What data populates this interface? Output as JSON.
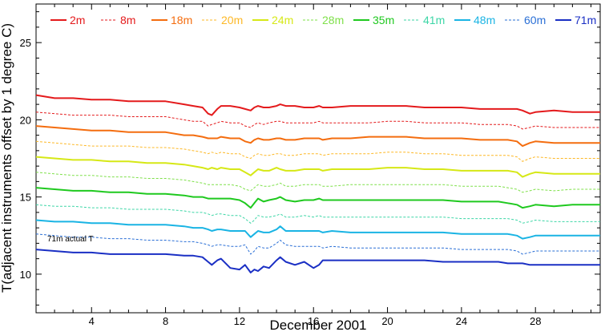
{
  "chart_data": {
    "type": "line",
    "title": "",
    "xlabel": "December 2001",
    "ylabel": "T(adjacent instruments offset by 1 degree C)",
    "xlim": [
      1,
      31.5
    ],
    "ylim": [
      7.5,
      27.5
    ],
    "xticks": [
      4,
      8,
      12,
      16,
      20,
      24,
      28
    ],
    "yticks": [
      10,
      15,
      20,
      25
    ],
    "grid": false,
    "legend_position": "top",
    "annotation": "71m actual T",
    "x": [
      1.0,
      2.0,
      3.0,
      4.0,
      5.0,
      6.0,
      7.0,
      8.0,
      9.0,
      9.5,
      10.0,
      10.3,
      10.5,
      10.8,
      11.0,
      11.5,
      12.0,
      12.3,
      12.6,
      12.8,
      13.0,
      13.3,
      13.6,
      14.0,
      14.2,
      14.5,
      15.0,
      15.5,
      16.0,
      16.3,
      16.5,
      17.0,
      18.0,
      19.0,
      20.0,
      21.0,
      22.0,
      23.0,
      24.0,
      25.0,
      26.0,
      26.5,
      27.0,
      27.3,
      27.7,
      28.0,
      29.0,
      30.0,
      31.0,
      31.5
    ],
    "series": [
      {
        "name": "2m",
        "color": "#e41a1c",
        "dash": false,
        "values": [
          21.6,
          21.4,
          21.4,
          21.3,
          21.3,
          21.2,
          21.2,
          21.2,
          21.0,
          20.9,
          20.8,
          20.4,
          20.3,
          20.7,
          20.9,
          20.9,
          20.8,
          20.7,
          20.6,
          20.8,
          20.9,
          20.8,
          20.8,
          20.9,
          21.0,
          20.9,
          20.9,
          20.8,
          20.8,
          20.9,
          20.8,
          20.8,
          20.9,
          20.9,
          20.9,
          20.9,
          20.8,
          20.8,
          20.8,
          20.7,
          20.7,
          20.7,
          20.7,
          20.6,
          20.4,
          20.5,
          20.6,
          20.5,
          20.5,
          20.5
        ]
      },
      {
        "name": "8m",
        "color": "#e41a1c",
        "dash": true,
        "values": [
          20.5,
          20.4,
          20.3,
          20.3,
          20.3,
          20.2,
          20.2,
          20.2,
          20.0,
          19.9,
          19.9,
          19.6,
          19.7,
          19.8,
          19.9,
          19.8,
          19.8,
          19.6,
          19.5,
          19.7,
          19.8,
          19.7,
          19.8,
          19.9,
          19.9,
          19.8,
          19.8,
          19.8,
          19.8,
          19.9,
          19.8,
          19.8,
          19.8,
          19.8,
          19.9,
          19.9,
          19.8,
          19.8,
          19.8,
          19.7,
          19.7,
          19.7,
          19.6,
          19.4,
          19.5,
          19.6,
          19.5,
          19.5,
          19.5,
          19.5
        ]
      },
      {
        "name": "18m",
        "color": "#f46d0f",
        "dash": false,
        "values": [
          19.6,
          19.5,
          19.4,
          19.3,
          19.3,
          19.2,
          19.2,
          19.2,
          19.0,
          19.0,
          18.9,
          18.8,
          18.8,
          18.8,
          18.9,
          18.8,
          18.8,
          18.6,
          18.5,
          18.7,
          18.8,
          18.7,
          18.7,
          18.8,
          18.8,
          18.7,
          18.7,
          18.8,
          18.8,
          18.8,
          18.7,
          18.8,
          18.8,
          18.9,
          18.9,
          18.9,
          18.8,
          18.8,
          18.8,
          18.7,
          18.7,
          18.7,
          18.6,
          18.3,
          18.5,
          18.6,
          18.5,
          18.5,
          18.5,
          18.5
        ]
      },
      {
        "name": "20m",
        "color": "#fdb827",
        "dash": true,
        "values": [
          18.6,
          18.5,
          18.4,
          18.3,
          18.3,
          18.3,
          18.2,
          18.2,
          18.1,
          18.0,
          17.9,
          17.8,
          17.9,
          17.8,
          17.9,
          17.8,
          17.8,
          17.6,
          17.5,
          17.7,
          17.8,
          17.7,
          17.7,
          17.8,
          17.8,
          17.7,
          17.7,
          17.8,
          17.8,
          17.8,
          17.7,
          17.8,
          17.8,
          17.8,
          17.9,
          17.9,
          17.8,
          17.8,
          17.7,
          17.7,
          17.7,
          17.7,
          17.6,
          17.3,
          17.5,
          17.6,
          17.5,
          17.5,
          17.5,
          17.5
        ]
      },
      {
        "name": "24m",
        "color": "#d6e816",
        "dash": false,
        "values": [
          17.6,
          17.5,
          17.4,
          17.4,
          17.3,
          17.3,
          17.2,
          17.2,
          17.1,
          17.0,
          16.9,
          16.8,
          16.9,
          16.8,
          16.9,
          16.8,
          16.8,
          16.6,
          16.4,
          16.6,
          16.8,
          16.7,
          16.7,
          16.9,
          16.8,
          16.7,
          16.7,
          16.8,
          16.8,
          16.8,
          16.7,
          16.8,
          16.8,
          16.8,
          16.9,
          16.9,
          16.8,
          16.8,
          16.7,
          16.7,
          16.7,
          16.7,
          16.6,
          16.3,
          16.5,
          16.6,
          16.5,
          16.5,
          16.5,
          16.5
        ]
      },
      {
        "name": "28m",
        "color": "#7fe04a",
        "dash": true,
        "values": [
          16.6,
          16.5,
          16.4,
          16.4,
          16.3,
          16.3,
          16.2,
          16.2,
          16.1,
          16.0,
          15.9,
          15.8,
          15.8,
          15.8,
          15.8,
          15.8,
          15.7,
          15.5,
          15.4,
          15.6,
          15.8,
          15.7,
          15.7,
          15.8,
          15.9,
          15.7,
          15.7,
          15.8,
          15.8,
          15.8,
          15.7,
          15.7,
          15.8,
          15.8,
          15.8,
          15.8,
          15.8,
          15.8,
          15.7,
          15.7,
          15.7,
          15.6,
          15.5,
          15.3,
          15.4,
          15.5,
          15.4,
          15.5,
          15.5,
          15.5
        ]
      },
      {
        "name": "35m",
        "color": "#1fc91f",
        "dash": false,
        "values": [
          15.6,
          15.5,
          15.4,
          15.4,
          15.3,
          15.3,
          15.2,
          15.2,
          15.1,
          15.0,
          15.0,
          14.9,
          14.9,
          14.9,
          14.9,
          14.9,
          14.8,
          14.6,
          14.3,
          14.6,
          14.9,
          14.7,
          14.8,
          14.9,
          15.0,
          14.8,
          14.7,
          14.8,
          14.8,
          14.9,
          14.8,
          14.8,
          14.8,
          14.8,
          14.8,
          14.8,
          14.8,
          14.8,
          14.7,
          14.7,
          14.7,
          14.6,
          14.5,
          14.3,
          14.4,
          14.5,
          14.4,
          14.5,
          14.5,
          14.5
        ]
      },
      {
        "name": "41m",
        "color": "#3cd6a6",
        "dash": true,
        "values": [
          14.5,
          14.4,
          14.4,
          14.3,
          14.3,
          14.2,
          14.2,
          14.2,
          14.1,
          14.0,
          14.0,
          13.9,
          13.8,
          13.9,
          13.9,
          13.8,
          13.8,
          13.6,
          13.3,
          13.5,
          13.8,
          13.7,
          13.7,
          13.8,
          13.9,
          13.7,
          13.7,
          13.8,
          13.7,
          13.8,
          13.7,
          13.7,
          13.7,
          13.7,
          13.7,
          13.7,
          13.7,
          13.7,
          13.6,
          13.6,
          13.6,
          13.6,
          13.5,
          13.3,
          13.4,
          13.5,
          13.4,
          13.4,
          13.4,
          13.4
        ]
      },
      {
        "name": "48m",
        "color": "#1ab4e4",
        "dash": false,
        "values": [
          13.5,
          13.4,
          13.4,
          13.3,
          13.3,
          13.2,
          13.2,
          13.2,
          13.1,
          13.0,
          13.0,
          12.9,
          12.8,
          12.9,
          12.9,
          12.8,
          12.8,
          12.8,
          12.4,
          12.6,
          12.8,
          12.7,
          12.7,
          12.9,
          13.1,
          12.8,
          12.8,
          12.8,
          12.8,
          12.8,
          12.7,
          12.8,
          12.7,
          12.7,
          12.7,
          12.7,
          12.7,
          12.7,
          12.6,
          12.6,
          12.6,
          12.6,
          12.5,
          12.3,
          12.4,
          12.5,
          12.5,
          12.5,
          12.5,
          12.5
        ]
      },
      {
        "name": "60m",
        "color": "#2a6fd6",
        "dash": true,
        "values": [
          12.6,
          12.5,
          12.4,
          12.4,
          12.3,
          12.3,
          12.2,
          12.2,
          12.1,
          12.1,
          12.0,
          11.9,
          11.8,
          11.9,
          11.9,
          11.8,
          11.8,
          11.9,
          11.3,
          11.5,
          11.8,
          11.7,
          11.7,
          12.0,
          12.2,
          11.9,
          11.8,
          11.8,
          11.8,
          11.8,
          11.7,
          11.8,
          11.7,
          11.7,
          11.7,
          11.7,
          11.7,
          11.7,
          11.6,
          11.6,
          11.6,
          11.6,
          11.5,
          11.3,
          11.4,
          11.5,
          11.5,
          11.5,
          11.5,
          11.5
        ]
      },
      {
        "name": "71m",
        "color": "#1a2fc4",
        "dash": false,
        "values": [
          11.6,
          11.5,
          11.4,
          11.4,
          11.3,
          11.3,
          11.3,
          11.3,
          11.2,
          11.2,
          11.1,
          10.8,
          10.6,
          10.9,
          11.0,
          10.4,
          10.3,
          10.6,
          10.1,
          10.3,
          10.2,
          10.5,
          10.4,
          10.9,
          11.1,
          10.8,
          10.6,
          10.8,
          10.4,
          10.6,
          10.9,
          10.9,
          10.9,
          10.9,
          10.9,
          10.9,
          10.9,
          10.8,
          10.8,
          10.8,
          10.8,
          10.7,
          10.7,
          10.7,
          10.6,
          10.6,
          10.6,
          10.6,
          10.6,
          10.6
        ]
      }
    ]
  }
}
